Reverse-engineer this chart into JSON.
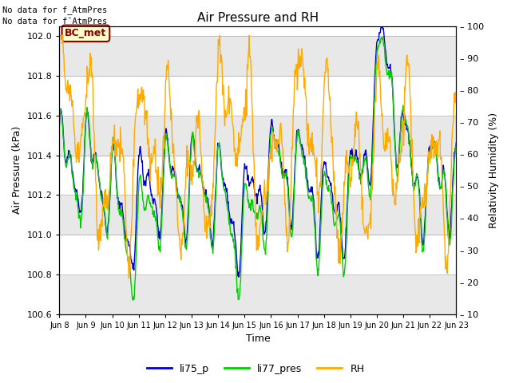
{
  "title": "Air Pressure and RH",
  "xlabel": "Time",
  "ylabel_left": "Air Pressure (kPa)",
  "ylabel_right": "Relativity Humidity (%)",
  "annotation_line1": "No data for f_AtmPres",
  "annotation_line2": "No data for f¯AtmPres",
  "bc_met_label": "BC_met",
  "ylim_left": [
    100.6,
    102.05
  ],
  "ylim_right": [
    10,
    100
  ],
  "yticks_left": [
    100.6,
    100.8,
    101.0,
    101.2,
    101.4,
    101.6,
    101.8,
    102.0
  ],
  "yticks_right": [
    10,
    20,
    30,
    40,
    50,
    60,
    70,
    80,
    90,
    100
  ],
  "xtick_labels": [
    "Jun 8",
    "Jun 9",
    "Jun 10",
    "Jun 11",
    "Jun 12",
    "Jun 13",
    "Jun 14",
    "Jun 15",
    "Jun 16",
    "Jun 17",
    "Jun 18",
    "Jun 19",
    "Jun 20",
    "Jun 21",
    "Jun 22",
    "Jun 23"
  ],
  "color_li75": "#0000cc",
  "color_li77": "#00cc00",
  "color_rh": "#ffaa00",
  "legend_labels": [
    "li75_p",
    "li77_pres",
    "RH"
  ],
  "bg_color": "#ffffff",
  "band_color_light": "#ffffff",
  "band_color_dark": "#e0e0e0",
  "fig_bg": "#ffffff"
}
